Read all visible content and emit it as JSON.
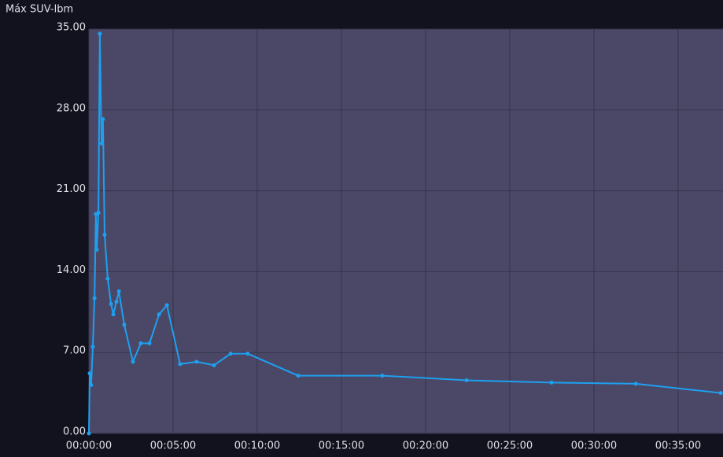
{
  "chart_data": {
    "type": "line",
    "title": "Máx SUV-lbm",
    "x": [
      0,
      3,
      8,
      14,
      20,
      25,
      28,
      34,
      39,
      45,
      50,
      56,
      67,
      79,
      87,
      98,
      107,
      126,
      157,
      185,
      216,
      250,
      278,
      325,
      384,
      446,
      505,
      566,
      746,
      1046,
      1346,
      1649,
      1949,
      2252
    ],
    "series": [
      {
        "color": "#1ea0f0",
        "values": [
          0,
          5.2,
          4.2,
          7.5,
          11.7,
          19.0,
          15.9,
          19.1,
          34.6,
          25.1,
          27.2,
          17.2,
          13.4,
          11.2,
          10.3,
          11.4,
          12.3,
          9.4,
          6.2,
          7.8,
          7.8,
          10.3,
          11.1,
          6.0,
          6.2,
          5.9,
          6.9,
          6.9,
          5.0,
          5.0,
          4.6,
          4.4,
          4.3,
          3.5
        ]
      }
    ],
    "xlim": [
      0,
      2260
    ],
    "xticks": [
      {
        "value": 0,
        "label": "00:00:00"
      },
      {
        "value": 300,
        "label": "00:05:00"
      },
      {
        "value": 600,
        "label": "00:10:00"
      },
      {
        "value": 900,
        "label": "00:15:00"
      },
      {
        "value": 1200,
        "label": "00:20:00"
      },
      {
        "value": 1500,
        "label": "00:25:00"
      },
      {
        "value": 1800,
        "label": "00:30:00"
      },
      {
        "value": 2100,
        "label": "00:35:00"
      }
    ],
    "ylim": [
      0,
      35
    ],
    "yticks": [
      {
        "value": 0,
        "label": "0.00"
      },
      {
        "value": 7,
        "label": "7.00"
      },
      {
        "value": 14,
        "label": "14.00"
      },
      {
        "value": 21,
        "label": "21.00"
      },
      {
        "value": 28,
        "label": "28.00"
      },
      {
        "value": 35,
        "label": "35.00"
      }
    ],
    "grid": true
  }
}
